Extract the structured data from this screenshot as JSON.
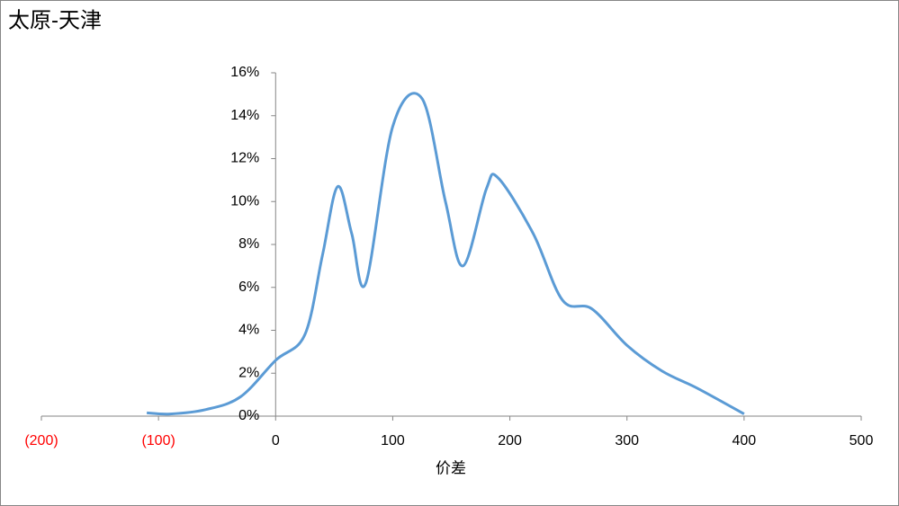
{
  "chart_data": {
    "type": "line",
    "title": "太原-天津",
    "x_label": "价差",
    "x": [
      -110,
      -90,
      -60,
      -30,
      0,
      25,
      40,
      53,
      65,
      77,
      100,
      125,
      145,
      160,
      180,
      190,
      220,
      245,
      270,
      300,
      330,
      360,
      400
    ],
    "series": [
      {
        "name": "太原-天津",
        "color": "#5b9bd5",
        "values": [
          0.15,
          0.1,
          0.3,
          0.9,
          2.6,
          3.8,
          7.5,
          10.7,
          8.5,
          6.2,
          13.5,
          14.8,
          10,
          7.0,
          10.6,
          11.1,
          8.5,
          5.4,
          5.0,
          3.3,
          2.1,
          1.3,
          0.1
        ]
      }
    ],
    "smooth": true,
    "xlim": [
      -200,
      500
    ],
    "xticks": [
      {
        "value": -200,
        "label": "(200)"
      },
      {
        "value": -100,
        "label": "(100)"
      },
      0,
      100,
      200,
      300,
      400,
      500
    ],
    "negative_tick_color": "#ff0000",
    "ylim": [
      0,
      16
    ],
    "yticks": [
      {
        "value": 0,
        "label": "0%"
      },
      {
        "value": 2,
        "label": "2%"
      },
      {
        "value": 4,
        "label": "4%"
      },
      {
        "value": 6,
        "label": "6%"
      },
      {
        "value": 8,
        "label": "8%"
      },
      {
        "value": 10,
        "label": "10%"
      },
      {
        "value": 12,
        "label": "12%"
      },
      {
        "value": 14,
        "label": "14%"
      },
      {
        "value": 16,
        "label": "16%"
      }
    ],
    "grid": false
  }
}
